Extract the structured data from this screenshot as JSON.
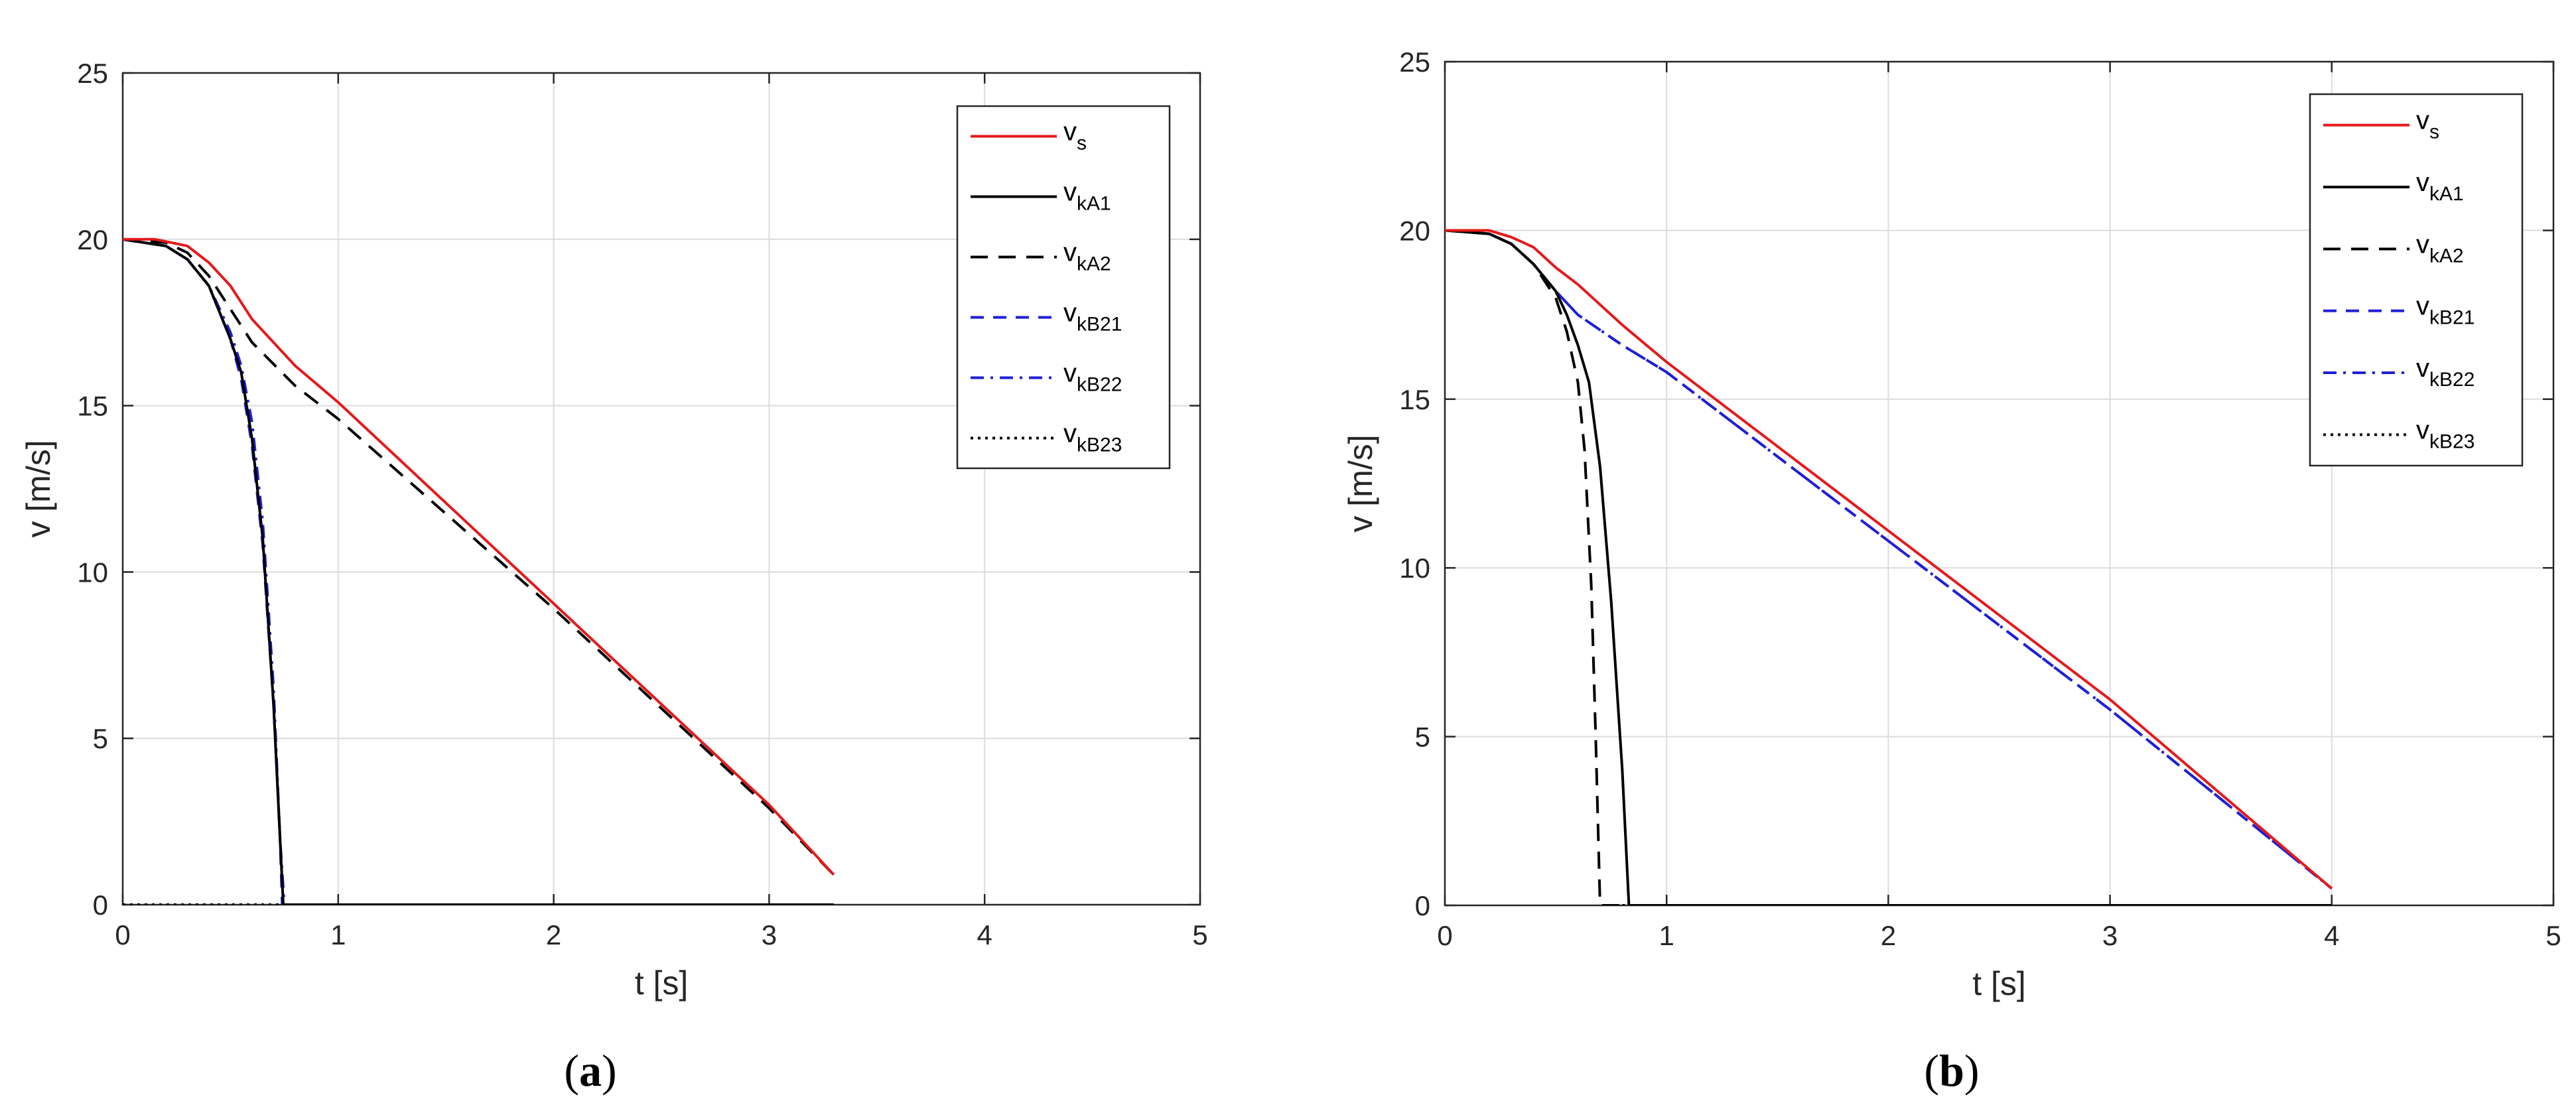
{
  "chart_data": [
    {
      "type": "line",
      "panel_label": {
        "open": "(",
        "letter": "a",
        "close": ")"
      },
      "xlabel": "t [s]",
      "ylabel": "v [m/s]",
      "xlim": [
        0,
        5
      ],
      "ylim": [
        0,
        25
      ],
      "xticks": [
        "0",
        "1",
        "2",
        "3",
        "4",
        "5"
      ],
      "yticks": [
        "0",
        "5",
        "10",
        "15",
        "20",
        "25"
      ],
      "grid": true,
      "legend_position": "top-right",
      "series": [
        {
          "base": "v",
          "sub": "s",
          "color": "#e41a1c",
          "dash": "solid",
          "points": [
            [
              0,
              20
            ],
            [
              0.15,
              20
            ],
            [
              0.3,
              19.8
            ],
            [
              0.4,
              19.3
            ],
            [
              0.5,
              18.6
            ],
            [
              0.6,
              17.6
            ],
            [
              0.8,
              16.2
            ],
            [
              1,
              15.1
            ],
            [
              2,
              9.05
            ],
            [
              3,
              3
            ],
            [
              3.3,
              0.9
            ]
          ]
        },
        {
          "base": "v",
          "sub": "kA1",
          "color": "#000000",
          "dash": "solid",
          "points": [
            [
              0,
              20
            ],
            [
              0.2,
              19.8
            ],
            [
              0.3,
              19.4
            ],
            [
              0.4,
              18.6
            ],
            [
              0.5,
              17
            ],
            [
              0.55,
              16
            ],
            [
              0.6,
              14
            ],
            [
              0.65,
              11
            ],
            [
              0.7,
              6
            ],
            [
              0.73,
              2
            ],
            [
              0.745,
              0
            ],
            [
              3.3,
              0
            ]
          ]
        },
        {
          "base": "v",
          "sub": "kA2",
          "color": "#000000",
          "dash": "long-dash",
          "points": [
            [
              0,
              20
            ],
            [
              0.2,
              19.9
            ],
            [
              0.3,
              19.6
            ],
            [
              0.4,
              18.9
            ],
            [
              0.5,
              17.9
            ],
            [
              0.6,
              16.9
            ],
            [
              0.8,
              15.6
            ],
            [
              1,
              14.6
            ],
            [
              2,
              8.9
            ],
            [
              3,
              2.9
            ],
            [
              3.3,
              0.9
            ]
          ]
        },
        {
          "base": "v",
          "sub": "kB21",
          "color": "#1f1fd6",
          "dash": "dash",
          "points": [
            [
              0,
              20
            ],
            [
              0.2,
              19.8
            ],
            [
              0.3,
              19.4
            ],
            [
              0.4,
              18.6
            ],
            [
              0.5,
              17
            ],
            [
              0.55,
              15.8
            ],
            [
              0.6,
              13.8
            ],
            [
              0.65,
              10.8
            ],
            [
              0.7,
              6
            ],
            [
              0.73,
              2
            ],
            [
              0.74,
              0
            ],
            [
              3.3,
              0
            ]
          ]
        },
        {
          "base": "v",
          "sub": "kB22",
          "color": "#1f1fd6",
          "dash": "dash-dot",
          "points": [
            [
              0,
              20
            ],
            [
              0.2,
              19.8
            ],
            [
              0.3,
              19.4
            ],
            [
              0.4,
              18.6
            ],
            [
              0.5,
              17.2
            ],
            [
              0.55,
              16.2
            ],
            [
              0.6,
              14.5
            ],
            [
              0.65,
              11.5
            ],
            [
              0.7,
              6.5
            ],
            [
              0.73,
              2
            ],
            [
              0.75,
              0
            ],
            [
              3.3,
              0
            ]
          ]
        },
        {
          "base": "v",
          "sub": "kB23",
          "color": "#000000",
          "dash": "dot",
          "points": [
            [
              0,
              0
            ],
            [
              3.3,
              0
            ]
          ]
        }
      ]
    },
    {
      "type": "line",
      "panel_label": {
        "open": "(",
        "letter": "b",
        "close": ")"
      },
      "xlabel": "t [s]",
      "ylabel": "v [m/s]",
      "xlim": [
        0,
        5
      ],
      "ylim": [
        0,
        25
      ],
      "xticks": [
        "0",
        "1",
        "2",
        "3",
        "4",
        "5"
      ],
      "yticks": [
        "0",
        "5",
        "10",
        "15",
        "20",
        "25"
      ],
      "grid": true,
      "legend_position": "top-right",
      "series": [
        {
          "base": "v",
          "sub": "s",
          "color": "#e41a1c",
          "dash": "solid",
          "points": [
            [
              0,
              20
            ],
            [
              0.2,
              20
            ],
            [
              0.3,
              19.8
            ],
            [
              0.4,
              19.5
            ],
            [
              0.5,
              18.9
            ],
            [
              0.6,
              18.4
            ],
            [
              0.8,
              17.2
            ],
            [
              1,
              16.1
            ],
            [
              2,
              11.1
            ],
            [
              3,
              6.1
            ],
            [
              4,
              0.5
            ]
          ]
        },
        {
          "base": "v",
          "sub": "kA1",
          "color": "#000000",
          "dash": "solid",
          "points": [
            [
              0,
              20
            ],
            [
              0.2,
              19.9
            ],
            [
              0.3,
              19.6
            ],
            [
              0.4,
              19
            ],
            [
              0.5,
              18.2
            ],
            [
              0.55,
              17.5
            ],
            [
              0.6,
              16.6
            ],
            [
              0.65,
              15.5
            ],
            [
              0.7,
              13
            ],
            [
              0.75,
              9
            ],
            [
              0.8,
              4
            ],
            [
              0.83,
              0
            ],
            [
              4,
              0
            ]
          ]
        },
        {
          "base": "v",
          "sub": "kA2",
          "color": "#000000",
          "dash": "long-dash",
          "points": [
            [
              0,
              20
            ],
            [
              0.2,
              19.9
            ],
            [
              0.3,
              19.6
            ],
            [
              0.4,
              19
            ],
            [
              0.5,
              18
            ],
            [
              0.55,
              17
            ],
            [
              0.6,
              15.5
            ],
            [
              0.63,
              13.5
            ],
            [
              0.66,
              9.5
            ],
            [
              0.68,
              5
            ],
            [
              0.7,
              0
            ],
            [
              4,
              0
            ]
          ]
        },
        {
          "base": "v",
          "sub": "kB21",
          "color": "#1f1fd6",
          "dash": "dash",
          "points": [
            [
              0,
              20
            ],
            [
              0.2,
              19.9
            ],
            [
              0.3,
              19.6
            ],
            [
              0.4,
              19
            ],
            [
              0.5,
              18.2
            ],
            [
              0.6,
              17.5
            ],
            [
              0.8,
              16.6
            ],
            [
              1,
              15.8
            ],
            [
              2,
              10.8
            ],
            [
              3,
              5.8
            ],
            [
              4,
              0.5
            ]
          ]
        },
        {
          "base": "v",
          "sub": "kB22",
          "color": "#1f1fd6",
          "dash": "dash-dot",
          "points": [
            [
              0,
              20
            ],
            [
              0.2,
              19.9
            ],
            [
              0.3,
              19.6
            ],
            [
              0.4,
              19
            ],
            [
              0.5,
              18.2
            ],
            [
              0.6,
              17.5
            ],
            [
              0.8,
              16.6
            ],
            [
              1,
              15.8
            ],
            [
              2,
              10.8
            ],
            [
              3,
              5.8
            ],
            [
              4,
              0.5
            ]
          ]
        },
        {
          "base": "v",
          "sub": "kB23",
          "color": "#000000",
          "dash": "dot",
          "points": [
            [
              0.8,
              0
            ],
            [
              4,
              0
            ]
          ]
        }
      ]
    }
  ]
}
